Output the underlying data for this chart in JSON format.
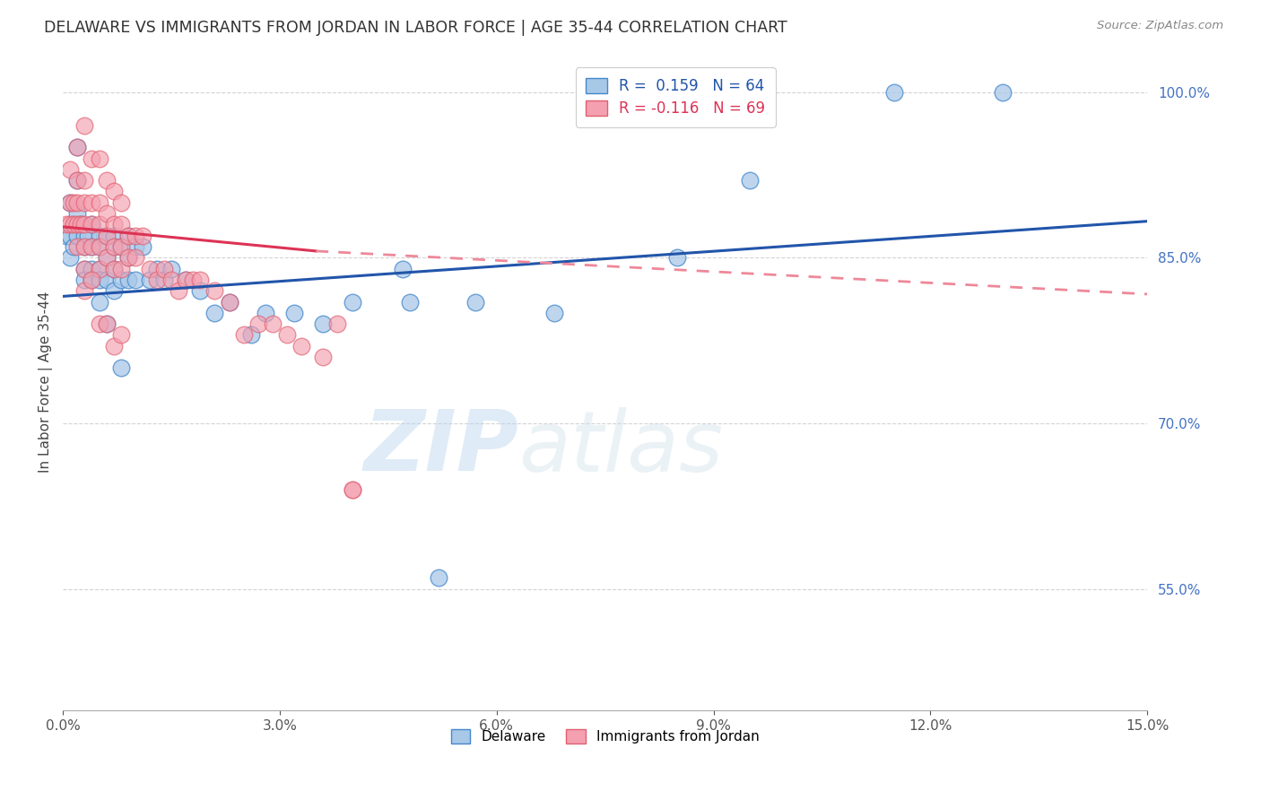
{
  "title": "DELAWARE VS IMMIGRANTS FROM JORDAN IN LABOR FORCE | AGE 35-44 CORRELATION CHART",
  "source": "Source: ZipAtlas.com",
  "ylabel": "In Labor Force | Age 35-44",
  "xlim": [
    0.0,
    0.15
  ],
  "ylim": [
    0.44,
    1.035
  ],
  "xticks": [
    0.0,
    0.03,
    0.06,
    0.09,
    0.12,
    0.15
  ],
  "yticks_right": [
    0.55,
    0.7,
    0.85,
    1.0
  ],
  "legend_label1": "Delaware",
  "legend_label2": "Immigrants from Jordan",
  "color_blue": "#a8c8e8",
  "color_pink": "#f4a0b0",
  "color_blue_edge": "#4488cc",
  "color_pink_edge": "#e06070",
  "color_blue_line": "#2255aa",
  "color_pink_line": "#dd3355",
  "color_pink_dashed": "#ee8899",
  "blue_x": [
    0.0005,
    0.001,
    0.001,
    0.001,
    0.0015,
    0.0015,
    0.002,
    0.002,
    0.002,
    0.002,
    0.0025,
    0.003,
    0.003,
    0.003,
    0.003,
    0.0035,
    0.004,
    0.004,
    0.004,
    0.004,
    0.005,
    0.005,
    0.005,
    0.005,
    0.005,
    0.006,
    0.006,
    0.006,
    0.007,
    0.007,
    0.007,
    0.007,
    0.008,
    0.008,
    0.009,
    0.009,
    0.009,
    0.01,
    0.01,
    0.011,
    0.012,
    0.013,
    0.014,
    0.015,
    0.017,
    0.019,
    0.021,
    0.023,
    0.026,
    0.028,
    0.032,
    0.036,
    0.04,
    0.047,
    0.057,
    0.068,
    0.085,
    0.095,
    0.115,
    0.13,
    0.048,
    0.052,
    0.006,
    0.008
  ],
  "blue_y": [
    0.87,
    0.9,
    0.87,
    0.85,
    0.88,
    0.86,
    0.95,
    0.92,
    0.89,
    0.87,
    0.88,
    0.87,
    0.86,
    0.84,
    0.83,
    0.87,
    0.88,
    0.86,
    0.84,
    0.83,
    0.87,
    0.86,
    0.84,
    0.83,
    0.81,
    0.87,
    0.85,
    0.83,
    0.87,
    0.86,
    0.84,
    0.82,
    0.86,
    0.83,
    0.87,
    0.85,
    0.83,
    0.86,
    0.83,
    0.86,
    0.83,
    0.84,
    0.83,
    0.84,
    0.83,
    0.82,
    0.8,
    0.81,
    0.78,
    0.8,
    0.8,
    0.79,
    0.81,
    0.84,
    0.81,
    0.8,
    0.85,
    0.92,
    1.0,
    1.0,
    0.81,
    0.56,
    0.79,
    0.75
  ],
  "pink_x": [
    0.0005,
    0.001,
    0.001,
    0.001,
    0.0015,
    0.0015,
    0.002,
    0.002,
    0.002,
    0.0025,
    0.003,
    0.003,
    0.003,
    0.003,
    0.004,
    0.004,
    0.004,
    0.005,
    0.005,
    0.005,
    0.005,
    0.006,
    0.006,
    0.006,
    0.007,
    0.007,
    0.007,
    0.008,
    0.008,
    0.008,
    0.009,
    0.009,
    0.01,
    0.01,
    0.011,
    0.012,
    0.013,
    0.014,
    0.015,
    0.016,
    0.017,
    0.018,
    0.019,
    0.021,
    0.023,
    0.025,
    0.027,
    0.029,
    0.031,
    0.033,
    0.036,
    0.038,
    0.04,
    0.04,
    0.003,
    0.004,
    0.005,
    0.006,
    0.007,
    0.008,
    0.002,
    0.002,
    0.003,
    0.003,
    0.004,
    0.005,
    0.006,
    0.007,
    0.008
  ],
  "pink_y": [
    0.88,
    0.93,
    0.9,
    0.88,
    0.9,
    0.88,
    0.9,
    0.88,
    0.86,
    0.88,
    0.9,
    0.88,
    0.86,
    0.84,
    0.9,
    0.88,
    0.86,
    0.9,
    0.88,
    0.86,
    0.84,
    0.89,
    0.87,
    0.85,
    0.88,
    0.86,
    0.84,
    0.88,
    0.86,
    0.84,
    0.87,
    0.85,
    0.87,
    0.85,
    0.87,
    0.84,
    0.83,
    0.84,
    0.83,
    0.82,
    0.83,
    0.83,
    0.83,
    0.82,
    0.81,
    0.78,
    0.79,
    0.79,
    0.78,
    0.77,
    0.76,
    0.79,
    0.64,
    0.64,
    0.82,
    0.83,
    0.79,
    0.79,
    0.77,
    0.78,
    0.95,
    0.92,
    0.92,
    0.97,
    0.94,
    0.94,
    0.92,
    0.91,
    0.9
  ],
  "blue_trend": [
    0.0,
    0.815,
    0.15,
    0.883
  ],
  "pink_solid": [
    0.0,
    0.878,
    0.035,
    0.856
  ],
  "pink_dashed": [
    0.035,
    0.856,
    0.15,
    0.817
  ],
  "watermark_zip": "ZIP",
  "watermark_atlas": "atlas",
  "background_color": "#ffffff",
  "grid_color": "#c8c8c8",
  "right_tick_color": "#4472c4",
  "title_color": "#333333",
  "source_color": "#888888"
}
